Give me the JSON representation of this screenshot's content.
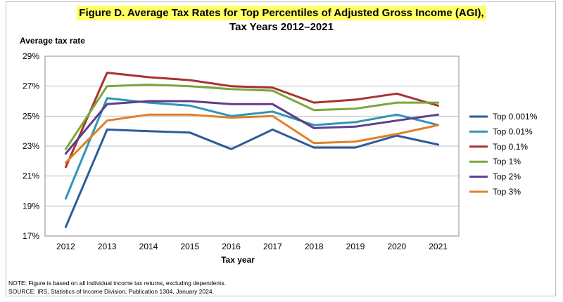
{
  "chart_data": {
    "type": "line",
    "title_line1": "Figure D.  Average Tax Rates for Top Percentiles of Adjusted Gross Income (AGI),",
    "title_line2": "Tax Years 2012–2021",
    "ylabel": "Average tax rate",
    "xlabel": "Tax year",
    "x": [
      "2012",
      "2013",
      "2014",
      "2015",
      "2016",
      "2017",
      "2018",
      "2019",
      "2020",
      "2021"
    ],
    "yticks": [
      "17%",
      "19%",
      "21%",
      "23%",
      "25%",
      "27%",
      "29%"
    ],
    "ylim": [
      17,
      29
    ],
    "grid": true,
    "legend_position": "right",
    "series": [
      {
        "name": "Top 0.001%",
        "color": "#2e5c9a",
        "values": [
          17.6,
          24.1,
          24.0,
          23.9,
          22.8,
          24.1,
          22.9,
          22.9,
          23.7,
          23.1
        ]
      },
      {
        "name": "Top 0.01%",
        "color": "#2e97b5",
        "values": [
          19.5,
          26.2,
          25.9,
          25.7,
          25.0,
          25.3,
          24.4,
          24.6,
          25.1,
          24.4
        ]
      },
      {
        "name": "Top 0.1%",
        "color": "#a83232",
        "values": [
          21.6,
          27.9,
          27.6,
          27.4,
          27.0,
          26.9,
          25.9,
          26.1,
          26.5,
          25.7
        ]
      },
      {
        "name": "Top 1%",
        "color": "#7aa83a",
        "values": [
          22.8,
          27.0,
          27.1,
          27.0,
          26.8,
          26.7,
          25.4,
          25.5,
          25.9,
          25.9
        ]
      },
      {
        "name": "Top 2%",
        "color": "#5f3d8c",
        "values": [
          22.5,
          25.8,
          26.0,
          26.0,
          25.8,
          25.8,
          24.2,
          24.3,
          24.7,
          25.1
        ]
      },
      {
        "name": "Top 3%",
        "color": "#e0802a",
        "values": [
          21.9,
          24.7,
          25.1,
          25.1,
          24.9,
          25.0,
          23.2,
          23.3,
          23.8,
          24.4
        ]
      }
    ]
  },
  "notes": {
    "note": "NOTE: Figure is based on all individual income tax returns, excluding dependents.",
    "source": "SOURCE: IRS, Statistics of Income Division, Publication 1304, January 2024."
  }
}
